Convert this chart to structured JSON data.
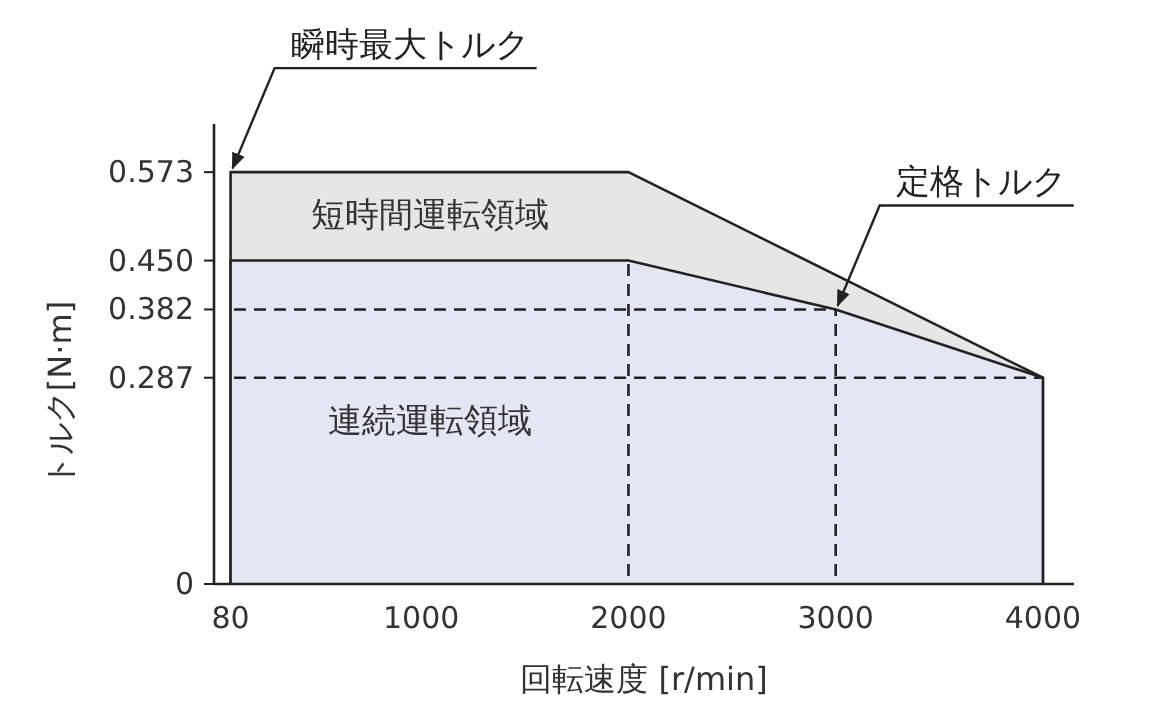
{
  "chart_data": {
    "type": "area",
    "xlabel": "回転速度 [r/min]",
    "ylabel": "トルク[N·m]",
    "xlim": [
      0,
      4150
    ],
    "ylim": [
      0,
      0.64
    ],
    "xticks": [
      80,
      1000,
      2000,
      3000,
      4000
    ],
    "yticks": [
      0,
      0.287,
      {
        "value": 0.382,
        "label": "0.382"
      },
      {
        "value": 0.45,
        "label": "0.450"
      },
      0.573
    ],
    "series": [
      {
        "name": "短時間運転領域",
        "color": "#e6e6e6",
        "x": [
          80,
          2000,
          4000
        ],
        "values": [
          0.573,
          0.573,
          0.287
        ]
      },
      {
        "name": "連続運転領域",
        "color": "#e3e7f3",
        "x": [
          80,
          2000,
          3000,
          4000
        ],
        "values": [
          0.45,
          0.45,
          0.382,
          0.287
        ]
      }
    ],
    "ref_lines": [
      {
        "axis": "x",
        "value": 2000,
        "line_style": "dashed"
      },
      {
        "axis": "x",
        "value": 3000,
        "line_style": "dashed"
      },
      {
        "axis": "y",
        "value": 0.382,
        "line_style": "dashed"
      },
      {
        "axis": "y",
        "value": 0.287,
        "line_style": "dashed"
      }
    ],
    "annotations": [
      {
        "text": "瞬時最大トルク",
        "x": 80,
        "y": 0.573
      },
      {
        "text": "定格トルク",
        "x": 3000,
        "y": 0.382
      }
    ],
    "legend": false,
    "grid": false
  }
}
